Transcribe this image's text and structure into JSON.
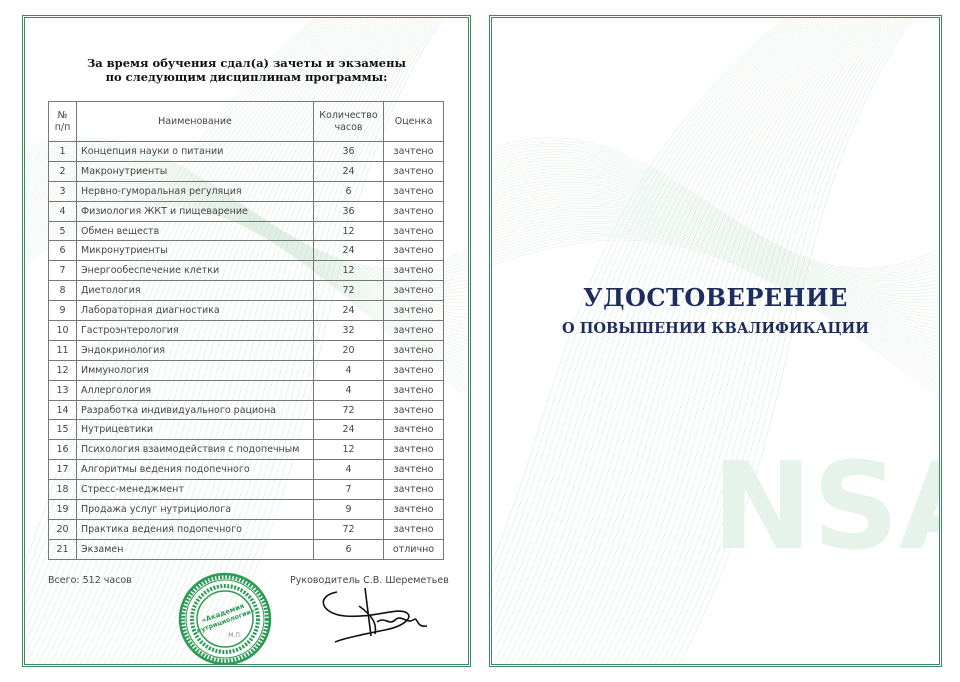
{
  "left_page": {
    "heading_line1": "За время обучения сдал(а) зачеты и экзамены",
    "heading_line2": "по следующим дисциплинам программы:",
    "table": {
      "headers": {
        "num_line1": "№",
        "num_line2": "п/п",
        "name": "Наименование",
        "hours_line1": "Количество",
        "hours_line2": "часов",
        "grade": "Оценка"
      },
      "rows": [
        [
          "1",
          "Концепция науки о питании",
          "36",
          "зачтено"
        ],
        [
          "2",
          "Макронутриенты",
          "24",
          "зачтено"
        ],
        [
          "3",
          "Нервно-гуморальная регуляция",
          "6",
          "зачтено"
        ],
        [
          "4",
          "Физиология ЖКТ и пищеварение",
          "36",
          "зачтено"
        ],
        [
          "5",
          "Обмен веществ",
          "12",
          "зачтено"
        ],
        [
          "6",
          "Микронутриенты",
          "24",
          "зачтено"
        ],
        [
          "7",
          "Энергообеспечение клетки",
          "12",
          "зачтено"
        ],
        [
          "8",
          "Диетология",
          "72",
          "зачтено"
        ],
        [
          "9",
          "Лабораторная диагностика",
          "24",
          "зачтено"
        ],
        [
          "10",
          "Гастроэнтерология",
          "32",
          "зачтено"
        ],
        [
          "11",
          "Эндокринология",
          "20",
          "зачтено"
        ],
        [
          "12",
          "Иммунология",
          "4",
          "зачтено"
        ],
        [
          "13",
          "Аллергология",
          "4",
          "зачтено"
        ],
        [
          "14",
          "Разработка индивидуального рациона",
          "72",
          "зачтено"
        ],
        [
          "15",
          "Нутрицевтики",
          "24",
          "зачтено"
        ],
        [
          "16",
          "Психология взаимодействия с подопечным",
          "12",
          "зачтено"
        ],
        [
          "17",
          "Алгоритмы ведения подопечного",
          "4",
          "зачтено"
        ],
        [
          "18",
          "Стресс-менеджмент",
          "7",
          "зачтено"
        ],
        [
          "19",
          "Продажа услуг нутрициолога",
          "9",
          "зачтено"
        ],
        [
          "20",
          "Практика ведения подопечного",
          "72",
          "зачтено"
        ],
        [
          "21",
          "Экзамен",
          "6",
          "отлично"
        ]
      ]
    },
    "total": "Всего: 512 часов",
    "head_signature": "Руководитель С.В. Шереметьев",
    "stamp": {
      "center_line1": "«Академия",
      "center_line2": "нутрициологии»",
      "mp": "М.П.",
      "ring_text": "Автономная некоммерческая организация дополнительного профессионального образования"
    }
  },
  "right_page": {
    "title": "УДОСТОВЕРЕНИЕ",
    "subtitle": "О ПОВЫШЕНИИ КВАЛИФИКАЦИИ",
    "watermark": "NSA"
  },
  "colors": {
    "border": "#3d8a5e",
    "title": "#1e2c5e",
    "stamp": "#2f9a55"
  }
}
